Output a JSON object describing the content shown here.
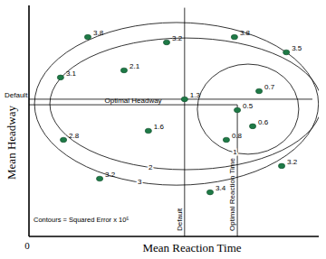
{
  "chart_data": {
    "type": "scatter",
    "x_label": "Mean Reaction Time",
    "y_label": "Mean Headway",
    "xlim": [
      0,
      100
    ],
    "ylim": [
      0,
      100
    ],
    "xticks": [
      0
    ],
    "yticks": [],
    "tick_labels": "x",
    "grid": false,
    "color": "#1e7a46",
    "marker": "ellipse",
    "x": [
      20.3,
      47.5,
      70.9,
      88.8,
      10.9,
      32.8,
      53.7,
      79.4,
      71.9,
      77.2,
      68.1,
      41.2,
      11.9,
      87.2,
      24.4,
      62.5
    ],
    "values": [
      86.3,
      84.0,
      86.3,
      79.7,
      68.8,
      71.9,
      59.4,
      62.9,
      54.7,
      47.7,
      41.8,
      45.7,
      41.8,
      30.5,
      25.0,
      19.1
    ],
    "point_labels": [
      3.8,
      3.2,
      3.8,
      3.5,
      3.1,
      2.1,
      1.3,
      0.7,
      0.5,
      0.6,
      0.8,
      1.6,
      2.8,
      3.2,
      3.2,
      3.4
    ],
    "reference_lines": [
      {
        "label": "Default",
        "direction": "horizontal",
        "value": 59.4,
        "span": [
          0,
          97.8
        ]
      },
      {
        "label": "Optimal Headway",
        "direction": "horizontal",
        "value": 57,
        "span": [
          0,
          71.9
        ]
      },
      {
        "label": "Default",
        "direction": "vertical",
        "value": 53.7,
        "span": [
          0,
          99
        ]
      },
      {
        "label": "Optimal Reaction Time",
        "direction": "vertical",
        "value": 71.9,
        "span": [
          0,
          57
        ]
      }
    ],
    "contours": [
      {
        "level": 1,
        "cx": 75.6,
        "cy": 55.1,
        "rx": 17.5,
        "ry": 19.5
      },
      {
        "level": 2,
        "cx": 54.1,
        "cy": 57.4,
        "rx": 46.9,
        "ry": 28.5
      },
      {
        "level": 3,
        "cx": 50.9,
        "cy": 57.4,
        "rx": 49,
        "ry": 35.2
      }
    ],
    "annotation": "Contours = Squared Error x 10⁵"
  }
}
